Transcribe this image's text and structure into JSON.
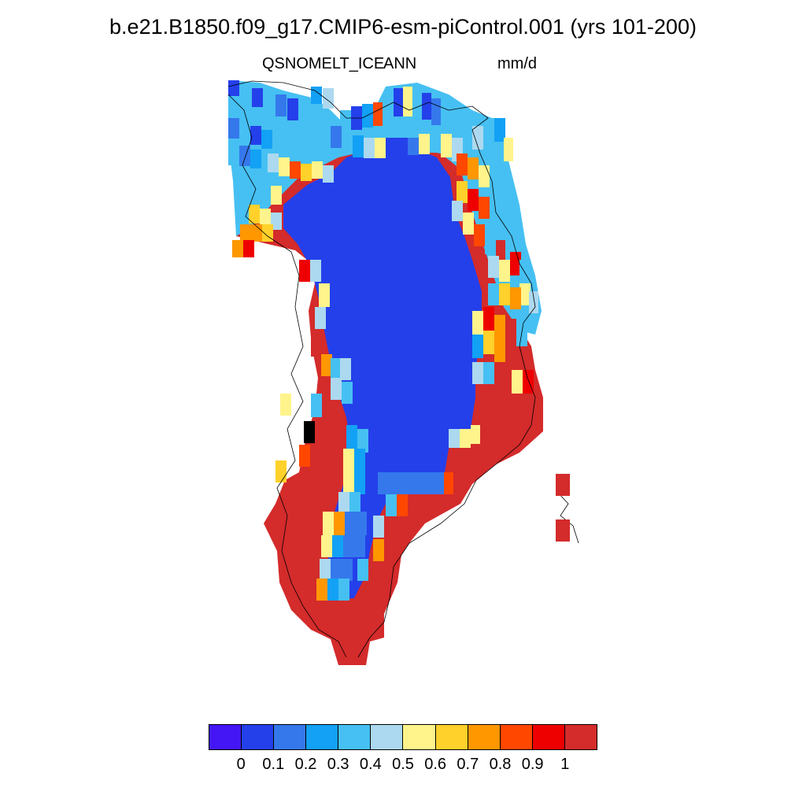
{
  "title": "b.e21.B1850.f09_g17.CMIP6-esm-piControl.001 (yrs 101-200)",
  "variable": "QSNOMELT_ICE",
  "season": "ANN",
  "units": "mm/d",
  "colorbar": {
    "colors": [
      "#4416f5",
      "#2440ea",
      "#3578ec",
      "#12a1f5",
      "#46c0f2",
      "#acd9ef",
      "#fff48b",
      "#ffd12a",
      "#ff9700",
      "#ff4700",
      "#ee0000",
      "#d42b2b"
    ],
    "tick_labels": [
      "0",
      "0.1",
      "0.2",
      "0.3",
      "0.4",
      "0.5",
      "0.6",
      "0.7",
      "0.8",
      "0.9",
      "1"
    ]
  },
  "map_colors": {
    "interior": "#2440ea",
    "coast_warm": "#d42b2b",
    "coastline": "#000000"
  }
}
